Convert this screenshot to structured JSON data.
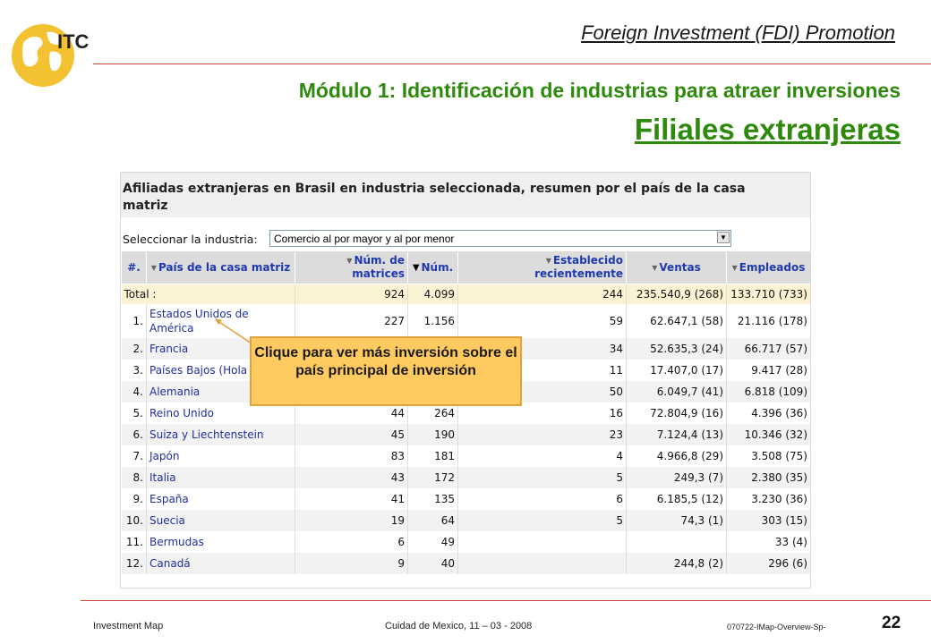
{
  "header": {
    "logo_text": "ITC",
    "title": "Foreign Investment (FDI) Promotion"
  },
  "slide": {
    "module_title": "Módulo 1: Identificación de industrias para atraer inversiones",
    "subtitle": " Filiales extranjeras"
  },
  "panel": {
    "title": "Afiliadas extranjeras en Brasil en industria seleccionada, resumen por el país de la casa matriz",
    "industry_label": "Seleccionar la industria:",
    "industry_value": "Comercio al por mayor y al por menor"
  },
  "table": {
    "columns": [
      "#.",
      "País de la casa matriz",
      "Núm. de matrices",
      "Núm.",
      "Establecido recientemente",
      "Ventas",
      "Empleados"
    ],
    "total": {
      "label": "Total :",
      "matrices": "924",
      "num": "4.099",
      "recent": "244",
      "ventas": "235.540,9 (268)",
      "empleados": "133.710 (733)"
    },
    "rows": [
      {
        "rank": "1.",
        "country": "Estados Unidos de América",
        "matrices": "227",
        "num": "1.156",
        "recent": "59",
        "ventas": "62.647,1 (58)",
        "empleados": "21.116 (178)"
      },
      {
        "rank": "2.",
        "country": "Francia",
        "matrices": "",
        "num": "",
        "recent": "34",
        "ventas": "52.635,3 (24)",
        "empleados": "66.717 (57)"
      },
      {
        "rank": "3.",
        "country": "Países Bajos (Hola",
        "matrices": "",
        "num": "",
        "recent": "11",
        "ventas": "17.407,0 (17)",
        "empleados": "9.417 (28)"
      },
      {
        "rank": "4.",
        "country": "Alemania",
        "matrices": "",
        "num": "",
        "recent": "50",
        "ventas": "6.049,7 (41)",
        "empleados": "6.818 (109)"
      },
      {
        "rank": "5.",
        "country": "Reino Unido",
        "matrices": "44",
        "num": "264",
        "recent": "16",
        "ventas": "72.804,9 (16)",
        "empleados": "4.396 (36)"
      },
      {
        "rank": "6.",
        "country": "Suiza y Liechtenstein",
        "matrices": "45",
        "num": "190",
        "recent": "23",
        "ventas": "7.124,4 (13)",
        "empleados": "10.346 (32)"
      },
      {
        "rank": "7.",
        "country": "Japón",
        "matrices": "83",
        "num": "181",
        "recent": "4",
        "ventas": "4.966,8 (29)",
        "empleados": "3.508 (75)"
      },
      {
        "rank": "8.",
        "country": "Italia",
        "matrices": "43",
        "num": "172",
        "recent": "5",
        "ventas": "249,3 (7)",
        "empleados": "2.380 (35)"
      },
      {
        "rank": "9.",
        "country": "España",
        "matrices": "41",
        "num": "135",
        "recent": "6",
        "ventas": "6.185,5 (12)",
        "empleados": "3.230 (36)"
      },
      {
        "rank": "10.",
        "country": "Suecia",
        "matrices": "19",
        "num": "64",
        "recent": "5",
        "ventas": "74,3 (1)",
        "empleados": "303 (15)"
      },
      {
        "rank": "11.",
        "country": "Bermudas",
        "matrices": "6",
        "num": "49",
        "recent": "",
        "ventas": "",
        "empleados": "33 (4)"
      },
      {
        "rank": "12.",
        "country": "Canadá",
        "matrices": "9",
        "num": "40",
        "recent": "",
        "ventas": "244,8 (2)",
        "empleados": "296 (6)"
      }
    ]
  },
  "callout": {
    "text": "Clique para ver más inversión sobre el país principal de inversión"
  },
  "footer": {
    "left": "Investment Map",
    "middle": "Cuidad de Mexico, 11 – 03 - 2008",
    "code": "070722-IMap-Overview-Sp-",
    "page": "22"
  },
  "colors": {
    "accent_green": "#2e8a0c",
    "rule_red": "#c9463d",
    "link_blue": "#1f2fa0",
    "callout_fill": "#ffca5f"
  }
}
